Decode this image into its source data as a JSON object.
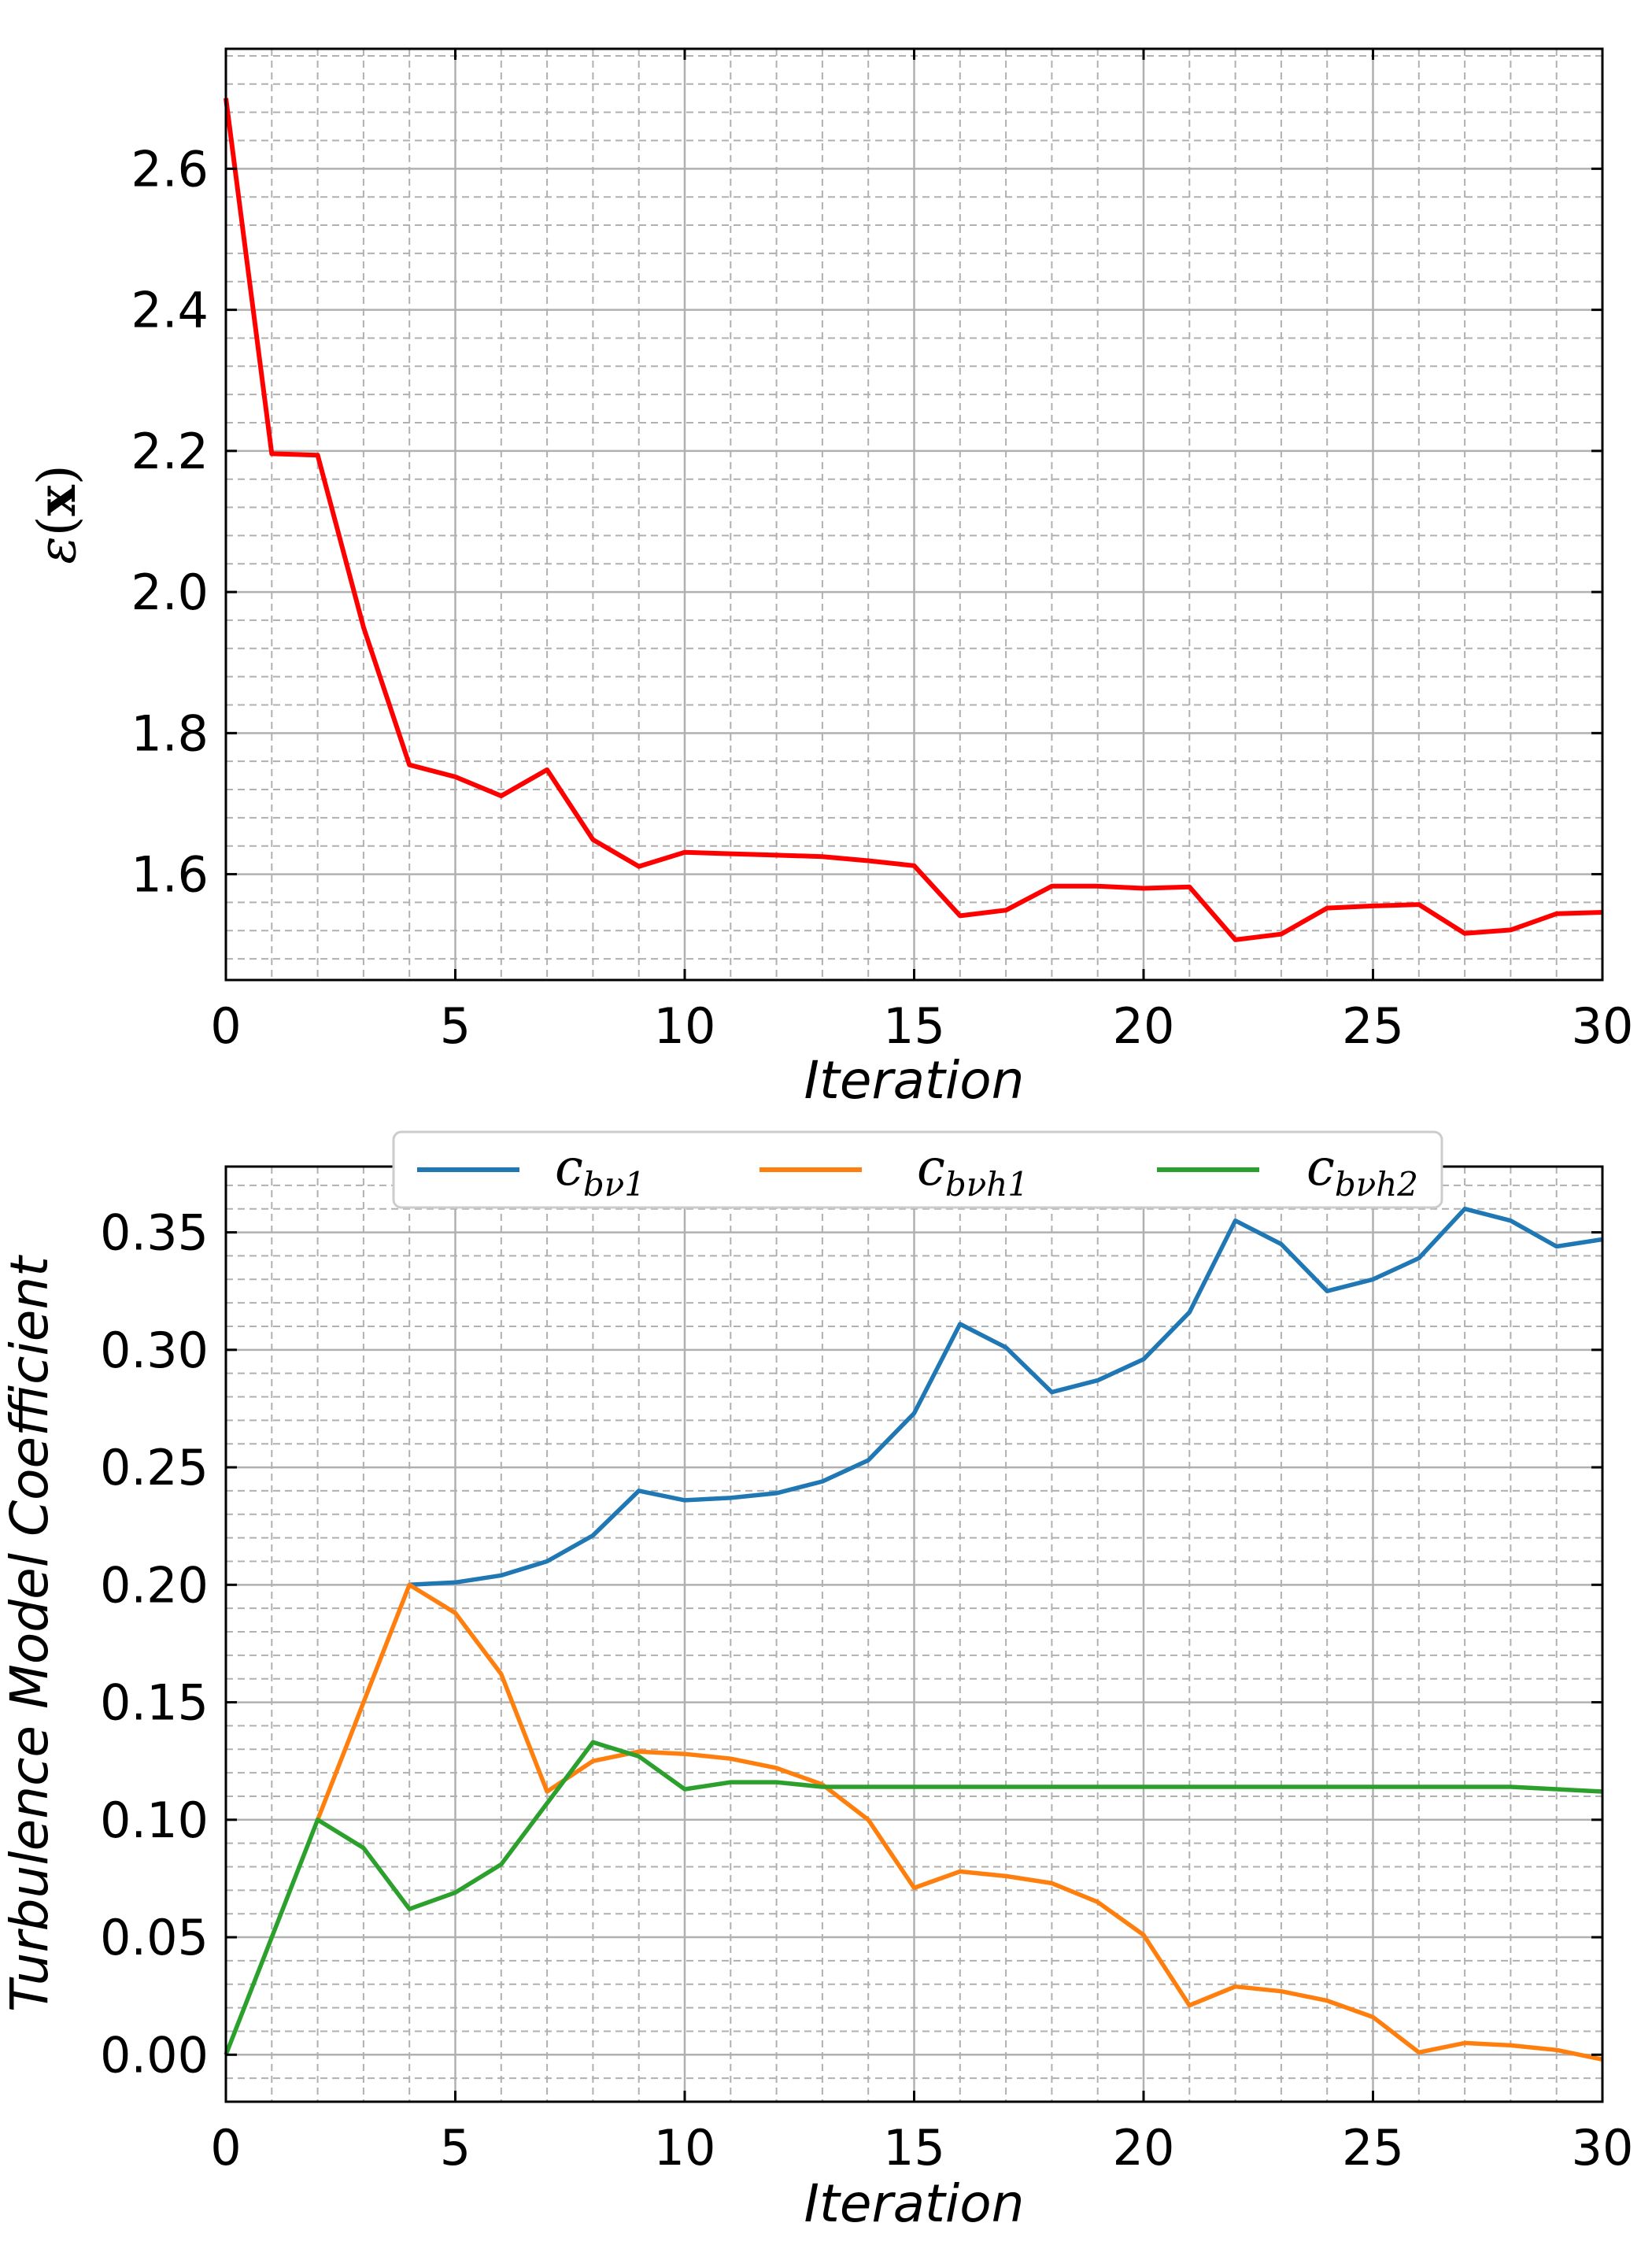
{
  "chart_data": [
    {
      "type": "line",
      "title": "",
      "xlabel": "Iteration",
      "ylabel": "ε(x)",
      "ylabel_symbol": "ε",
      "ylabel_arg": "x",
      "xlim": [
        0,
        30
      ],
      "ylim": [
        1.45,
        2.77
      ],
      "xticks": [
        0,
        5,
        10,
        15,
        20,
        25,
        30
      ],
      "yticks": [
        1.6,
        1.8,
        2.0,
        2.2,
        2.4,
        2.6
      ],
      "ytick_labels": [
        "1.6",
        "1.8",
        "2.0",
        "2.2",
        "2.4",
        "2.6"
      ],
      "grid": true,
      "series": [
        {
          "name": "ε(x)",
          "color": "#ff0000",
          "x": [
            0,
            1,
            2,
            3,
            4,
            5,
            6,
            7,
            8,
            9,
            10,
            11,
            12,
            13,
            14,
            15,
            16,
            17,
            18,
            19,
            20,
            21,
            22,
            23,
            24,
            25,
            26,
            27,
            28,
            29,
            30
          ],
          "values": [
            2.7,
            2.196,
            2.194,
            1.95,
            1.755,
            1.738,
            1.711,
            1.748,
            1.649,
            1.611,
            1.631,
            1.629,
            1.627,
            1.625,
            1.619,
            1.612,
            1.541,
            1.549,
            1.583,
            1.583,
            1.58,
            1.582,
            1.507,
            1.515,
            1.552,
            1.555,
            1.557,
            1.516,
            1.521,
            1.544,
            1.546
          ]
        }
      ]
    },
    {
      "type": "line",
      "title": "",
      "xlabel": "Iteration",
      "ylabel": "Turbulence Model Coefficient",
      "xlim": [
        0,
        30
      ],
      "ylim": [
        -0.02,
        0.378
      ],
      "xticks": [
        0,
        5,
        10,
        15,
        20,
        25,
        30
      ],
      "yticks": [
        0.0,
        0.05,
        0.1,
        0.15,
        0.2,
        0.25,
        0.3,
        0.35
      ],
      "ytick_labels": [
        "0.00",
        "0.05",
        "0.10",
        "0.15",
        "0.20",
        "0.25",
        "0.30",
        "0.35"
      ],
      "grid": true,
      "legend_position": "top-center",
      "series": [
        {
          "name": "c_bν1",
          "label_main": "c",
          "label_sub": "bν1",
          "color": "#1f77b4",
          "x": [
            4,
            5,
            6,
            7,
            8,
            9,
            10,
            11,
            12,
            13,
            14,
            15,
            16,
            17,
            18,
            19,
            20,
            21,
            22,
            23,
            24,
            25,
            26,
            27,
            28,
            29,
            30
          ],
          "values": [
            0.2,
            0.201,
            0.204,
            0.21,
            0.221,
            0.24,
            0.236,
            0.237,
            0.239,
            0.244,
            0.253,
            0.273,
            0.311,
            0.301,
            0.282,
            0.287,
            0.296,
            0.316,
            0.355,
            0.345,
            0.325,
            0.33,
            0.339,
            0.36,
            0.355,
            0.344,
            0.347
          ]
        },
        {
          "name": "c_bνh1",
          "label_main": "c",
          "label_sub": "bνh1",
          "color": "#ff7f0e",
          "x": [
            2,
            3,
            4,
            5,
            6,
            7,
            8,
            9,
            10,
            11,
            12,
            13,
            14,
            15,
            16,
            17,
            18,
            19,
            20,
            21,
            22,
            23,
            24,
            25,
            26,
            27,
            28,
            29,
            30
          ],
          "values": [
            0.1,
            0.15,
            0.2,
            0.188,
            0.162,
            0.112,
            0.125,
            0.129,
            0.128,
            0.126,
            0.122,
            0.115,
            0.1,
            0.071,
            0.078,
            0.076,
            0.073,
            0.065,
            0.051,
            0.021,
            0.029,
            0.027,
            0.023,
            0.016,
            0.001,
            0.005,
            0.004,
            0.002,
            -0.002
          ]
        },
        {
          "name": "c_bνh2",
          "label_main": "c",
          "label_sub": "bνh2",
          "color": "#2ca02c",
          "x": [
            0,
            1,
            2,
            3,
            4,
            5,
            6,
            7,
            8,
            9,
            10,
            11,
            12,
            13,
            14,
            15,
            16,
            17,
            18,
            19,
            20,
            21,
            22,
            23,
            24,
            25,
            26,
            27,
            28,
            29,
            30
          ],
          "values": [
            0.0,
            0.05,
            0.1,
            0.088,
            0.062,
            0.069,
            0.081,
            0.107,
            0.133,
            0.127,
            0.113,
            0.116,
            0.116,
            0.114,
            0.114,
            0.114,
            0.114,
            0.114,
            0.114,
            0.114,
            0.114,
            0.114,
            0.114,
            0.114,
            0.114,
            0.114,
            0.114,
            0.114,
            0.114,
            0.113,
            0.112
          ]
        }
      ]
    }
  ]
}
